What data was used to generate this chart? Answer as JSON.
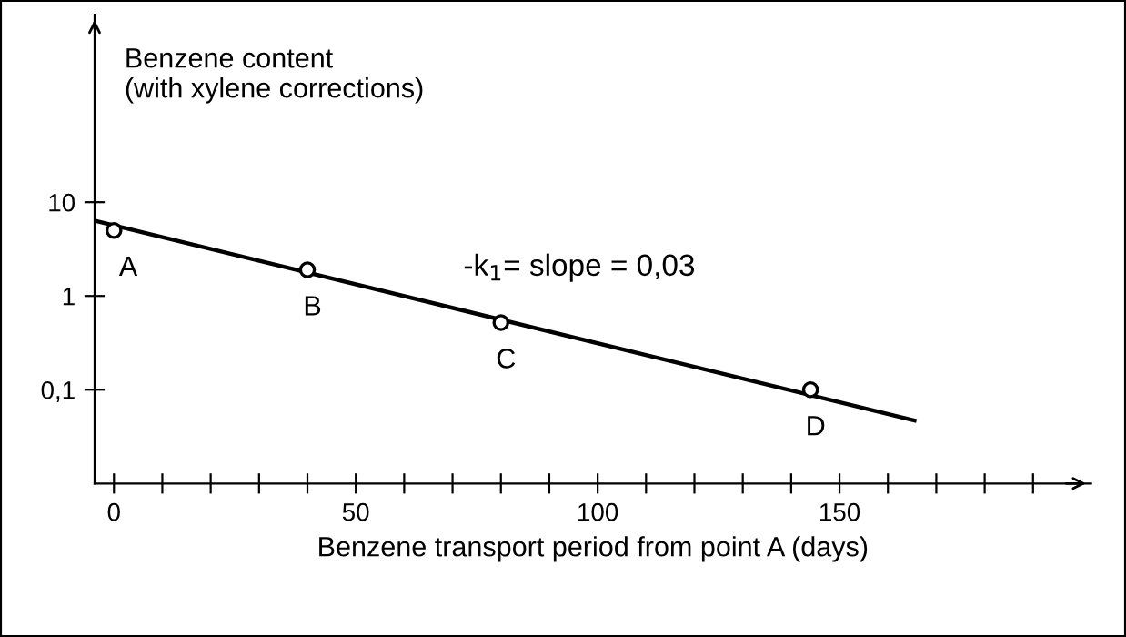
{
  "chart_data": {
    "type": "scatter",
    "xlabel": "Benzene transport period from point A (days)",
    "ylabel": "Benzene content\n(with xylene corrections)",
    "log": "y",
    "xlim": [
      -4,
      202
    ],
    "ylim": [
      0.01,
      1000
    ],
    "xticks": [
      0,
      {
        "value": 10,
        "label": null
      },
      {
        "value": 20,
        "label": null
      },
      {
        "value": 30,
        "label": null
      },
      {
        "value": 40,
        "label": null
      },
      50,
      {
        "value": 60,
        "label": null
      },
      {
        "value": 70,
        "label": null
      },
      {
        "value": 80,
        "label": null
      },
      {
        "value": 90,
        "label": null
      },
      100,
      {
        "value": 110,
        "label": null
      },
      {
        "value": 120,
        "label": null
      },
      {
        "value": 130,
        "label": null
      },
      {
        "value": 140,
        "label": null
      },
      150,
      {
        "value": 160,
        "label": null
      },
      {
        "value": 170,
        "label": null
      },
      {
        "value": 180,
        "label": null
      },
      {
        "value": 190,
        "label": null
      }
    ],
    "yticks": [
      {
        "value": 0.1,
        "label": "0,1"
      },
      1,
      10
    ],
    "grid": false,
    "series": [
      {
        "color": "#000000",
        "marker": "circle",
        "x": [
          0,
          40,
          80,
          144
        ],
        "values": [
          5,
          1.9,
          0.52,
          0.1
        ]
      },
      {
        "type": "line",
        "color": "#000000",
        "marker": "none",
        "line_style": "solid",
        "x": [
          -3.7,
          165.5
        ],
        "values": [
          6.3,
          0.047
        ]
      }
    ],
    "annotations": [
      {
        "text": "A",
        "x": 0,
        "y": 5
      },
      {
        "text": "B",
        "x": 40,
        "y": 1.9
      },
      {
        "text": "C",
        "x": 80,
        "y": 0.52
      },
      {
        "text": "D",
        "x": 144,
        "y": 0.1
      },
      "-k$_{1}$= slope = 0,03"
    ]
  }
}
